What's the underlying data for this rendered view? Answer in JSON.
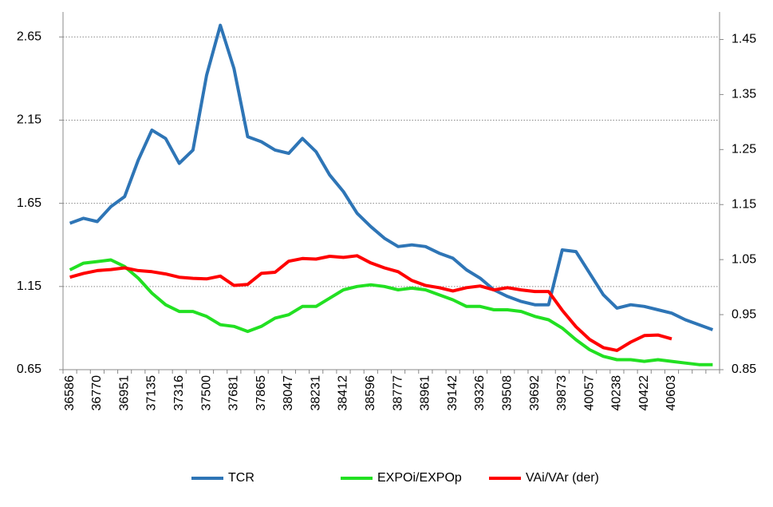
{
  "chart_data": {
    "type": "line",
    "categories": [
      36586,
      null,
      36770,
      null,
      36951,
      null,
      37135,
      null,
      37316,
      null,
      37500,
      null,
      37681,
      null,
      37865,
      null,
      38047,
      null,
      38231,
      null,
      38412,
      null,
      38596,
      null,
      38777,
      null,
      38961,
      null,
      39142,
      null,
      39326,
      null,
      39508,
      null,
      39692,
      null,
      39873,
      null,
      40057,
      null,
      40238,
      null,
      40422,
      null,
      40603,
      null,
      null,
      null
    ],
    "series": [
      {
        "name": "TCR",
        "color": "#2e75b6",
        "values": [
          1.53,
          1.56,
          1.54,
          1.63,
          1.69,
          1.91,
          2.09,
          2.04,
          1.89,
          1.97,
          2.42,
          2.72,
          2.46,
          2.05,
          2.02,
          1.97,
          1.95,
          2.04,
          1.96,
          1.82,
          1.72,
          1.59,
          1.51,
          1.44,
          1.39,
          1.4,
          1.39,
          1.35,
          1.32,
          1.25,
          1.2,
          1.13,
          1.09,
          1.06,
          1.04,
          1.04,
          1.37,
          1.36,
          1.23,
          1.1,
          1.02,
          1.04,
          1.03,
          1.01,
          0.99,
          0.95,
          0.92,
          0.89
        ]
      },
      {
        "name": "EXPOi/EXPOp",
        "color": "#22e022",
        "values": [
          1.25,
          1.29,
          1.3,
          1.31,
          1.27,
          1.2,
          1.11,
          1.04,
          1.0,
          1.0,
          0.97,
          0.92,
          0.91,
          0.88,
          0.91,
          0.96,
          0.98,
          1.03,
          1.03,
          1.08,
          1.13,
          1.15,
          1.16,
          1.15,
          1.13,
          1.14,
          1.13,
          1.1,
          1.07,
          1.03,
          1.03,
          1.01,
          1.01,
          1.0,
          0.97,
          0.95,
          0.9,
          0.83,
          0.77,
          0.73,
          0.71,
          0.71,
          0.7,
          0.71,
          0.7,
          0.69,
          0.68,
          0.68
        ]
      },
      {
        "name": "VAi/VAr (der)",
        "color": "#ff0000",
        "axis": "y2",
        "values": [
          1.018,
          1.025,
          1.03,
          1.032,
          1.035,
          1.03,
          1.028,
          1.024,
          1.018,
          1.016,
          1.015,
          1.02,
          1.003,
          1.005,
          1.025,
          1.027,
          1.047,
          1.052,
          1.051,
          1.056,
          1.054,
          1.057,
          1.044,
          1.035,
          1.028,
          1.012,
          1.003,
          0.999,
          0.993,
          0.999,
          1.002,
          0.995,
          0.999,
          0.995,
          0.992,
          0.992,
          0.958,
          0.928,
          0.905,
          0.89,
          0.885,
          0.9,
          0.912,
          0.913,
          0.906,
          null,
          null,
          null
        ]
      }
    ],
    "ylim": [
      0.65,
      2.8
    ],
    "yticks": [
      0.65,
      1.15,
      1.65,
      2.15,
      2.65
    ],
    "y2lim": [
      0.85,
      1.5
    ],
    "y2ticks": [
      0.85,
      0.95,
      1.05,
      1.15,
      1.25,
      1.35,
      1.45
    ],
    "grid": true,
    "legend": "bottom"
  }
}
